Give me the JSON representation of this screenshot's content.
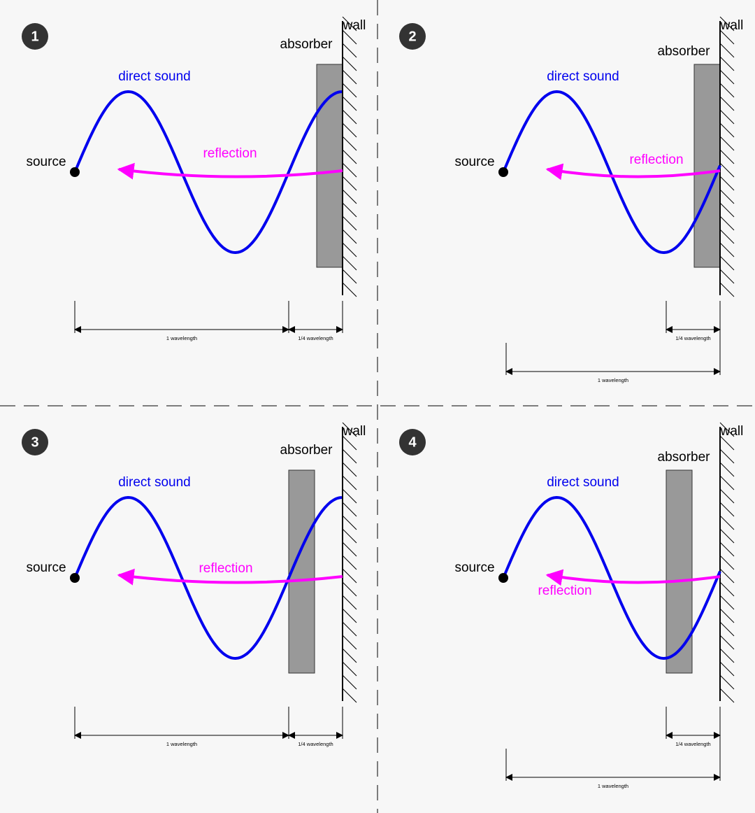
{
  "panels": [
    {
      "number": "1",
      "wall": "wall",
      "absorber": "absorber",
      "direct": "direct sound",
      "source": "source",
      "reflection": "reflection",
      "wavelength": "1 wavelength",
      "quarter": "1/4 wavelength"
    },
    {
      "number": "2",
      "wall": "wall",
      "absorber": "absorber",
      "direct": "direct sound",
      "source": "source",
      "reflection": "reflection",
      "wavelength": "1 wavelength",
      "quarter": "1/4 wavelength"
    },
    {
      "number": "3",
      "wall": "wall",
      "absorber": "absorber",
      "direct": "direct sound",
      "source": "source",
      "reflection": "reflection",
      "wavelength": "1 wavelength",
      "quarter": "1/4 wavelength"
    },
    {
      "number": "4",
      "wall": "wall",
      "absorber": "absorber",
      "direct": "direct sound",
      "source": "source",
      "reflection": "reflection",
      "wavelength": "1 wavelength",
      "quarter": "1/4 wavelength"
    }
  ]
}
